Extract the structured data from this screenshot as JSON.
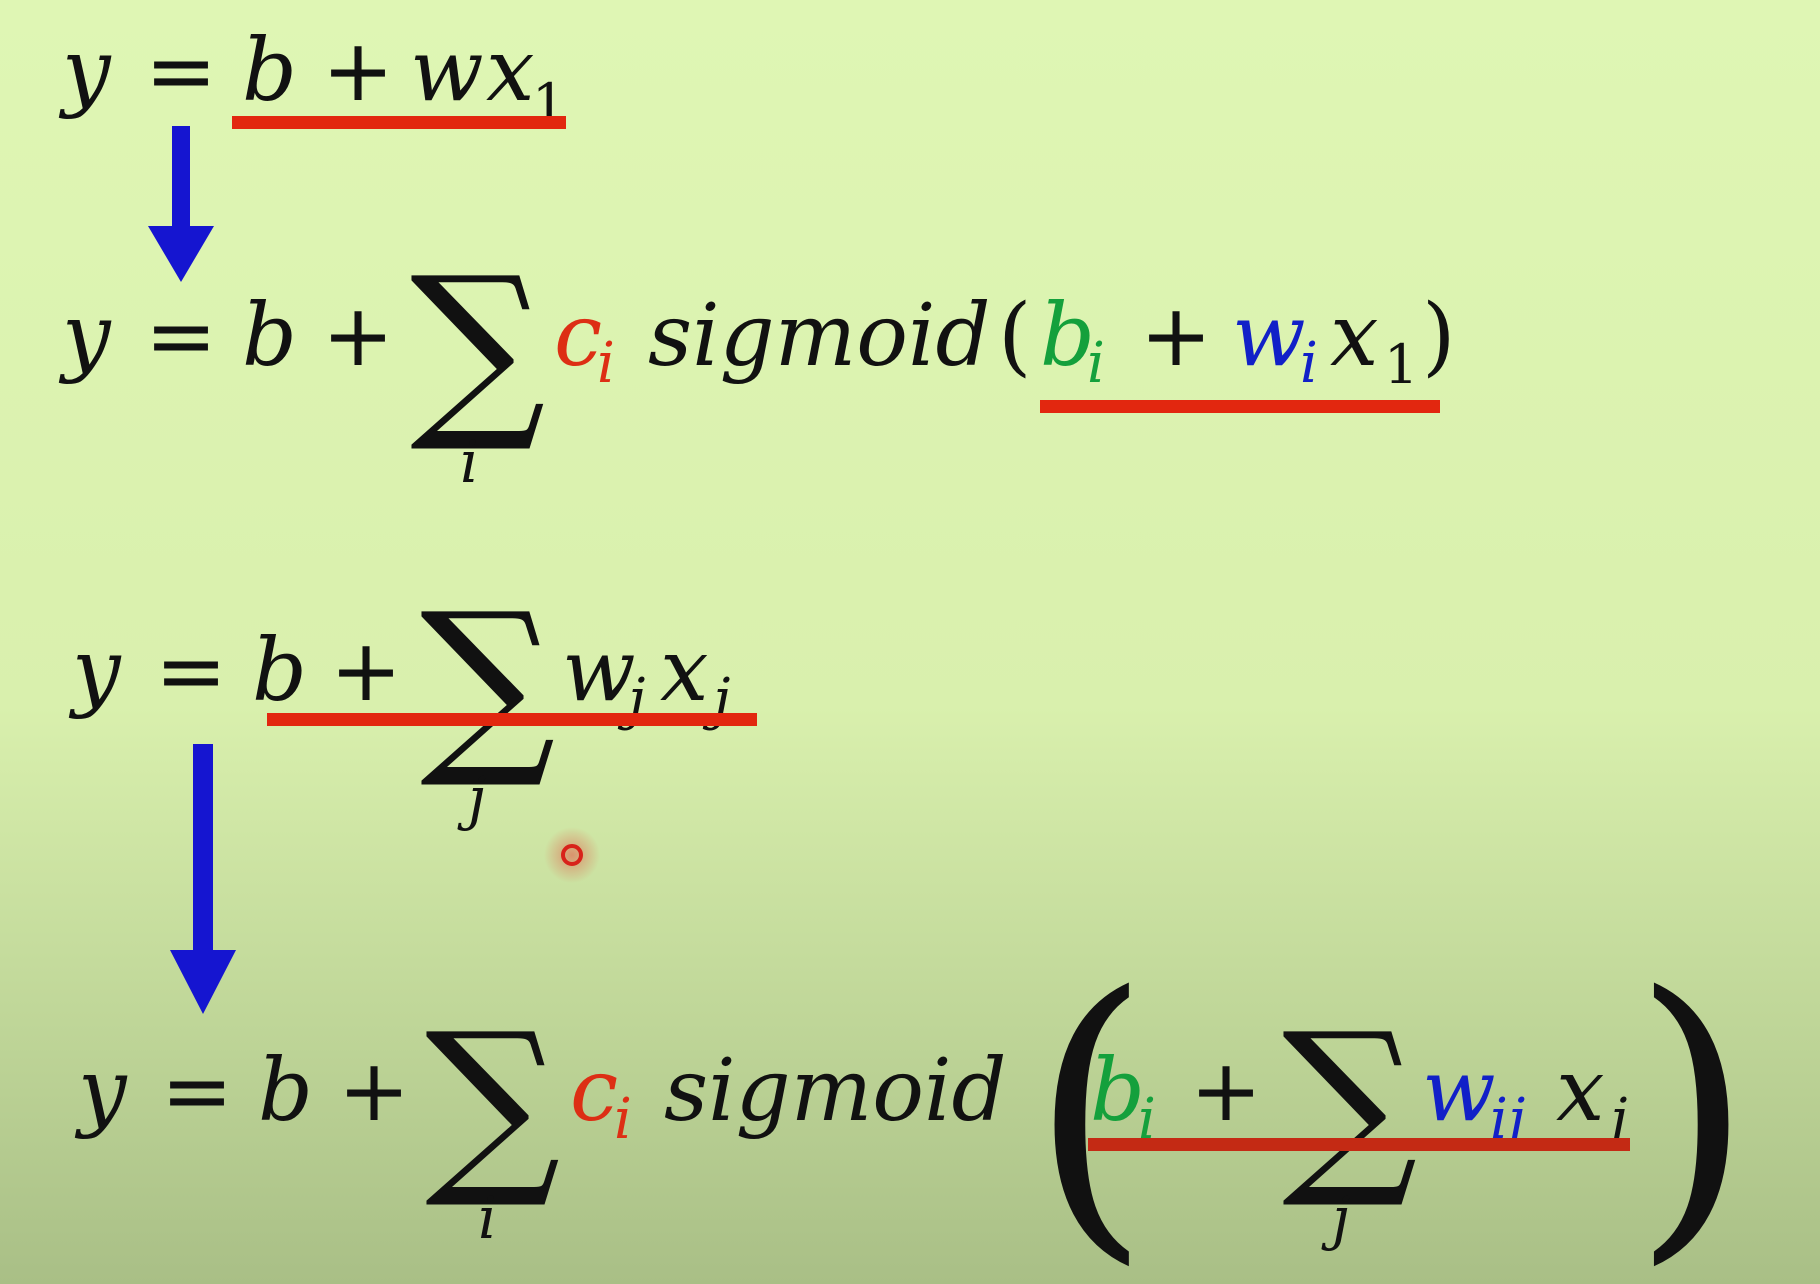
{
  "colors": {
    "background_top": "#dff6b4",
    "background_bottom": "#a9bf86",
    "black": "#111111",
    "red": "#dd2e14",
    "green": "#14a03c",
    "blue": "#1120c8",
    "arrow": "#1515d0",
    "underline": "#e2270f"
  },
  "eq1": {
    "y": "y",
    "eq": "=",
    "b": "b",
    "plus": "+",
    "w": "w",
    "x": "x",
    "sub1": "1"
  },
  "eq2": {
    "y": "y",
    "eq": "=",
    "b": "b",
    "plus": "+",
    "sigma": "∑",
    "sum_index": "i",
    "c": "c",
    "c_sub": "i",
    "func": "sigmoid",
    "lparen": "(",
    "bi": "b",
    "bi_sub": "i",
    "plus2": "+",
    "wi": "w",
    "wi_sub": "i",
    "x": "x",
    "x_sub": "1",
    "rparen": ")"
  },
  "eq3": {
    "y": "y",
    "eq": "=",
    "b": "b",
    "plus": "+",
    "sigma": "∑",
    "sum_index": "j",
    "w": "w",
    "w_sub": "j",
    "x": "x",
    "x_sub": "j"
  },
  "eq4": {
    "y": "y",
    "eq": "=",
    "b": "b",
    "plus": "+",
    "sigma": "∑",
    "sum_index": "i",
    "c": "c",
    "c_sub": "i",
    "func": "sigmoid",
    "lparen": "(",
    "bi": "b",
    "bi_sub": "i",
    "plus2": "+",
    "sigma2": "∑",
    "sum_index2": "j",
    "w": "w",
    "w_sub": "ij",
    "x": "x",
    "x_sub": "j",
    "rparen": ")"
  }
}
